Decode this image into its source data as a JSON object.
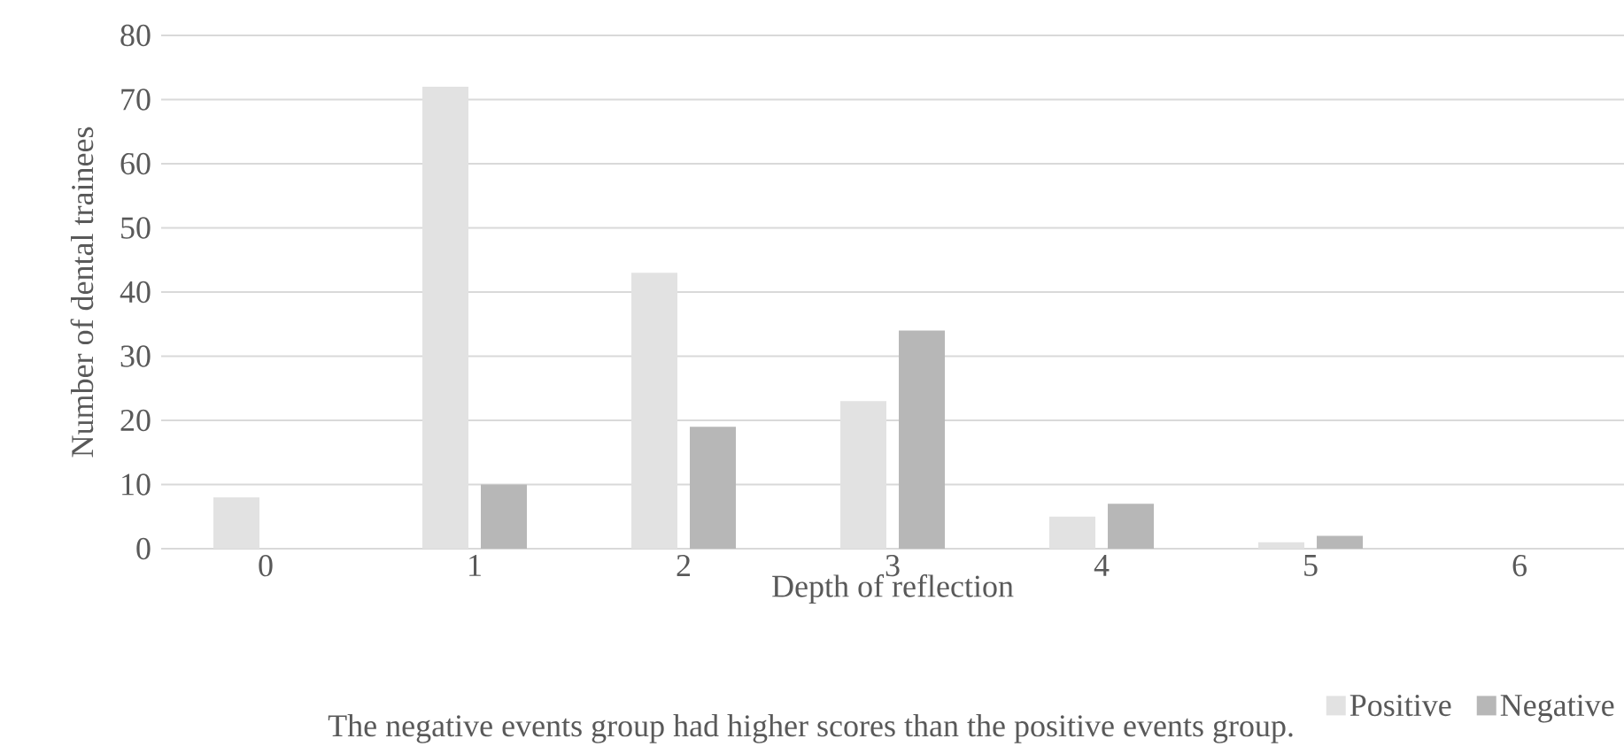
{
  "chart_data": {
    "type": "bar",
    "xlabel": "Depth of reflection",
    "ylabel": "Number of dental trainees",
    "categories": [
      "0",
      "1",
      "2",
      "3",
      "4",
      "5",
      "6"
    ],
    "series": [
      {
        "name": "Positive",
        "color": "#e2e2e2",
        "values": [
          8,
          72,
          43,
          23,
          5,
          1,
          0
        ]
      },
      {
        "name": "Negative",
        "color": "#b7b7b7",
        "values": [
          0,
          10,
          19,
          34,
          7,
          2,
          0
        ]
      }
    ],
    "ylim": [
      0,
      80
    ],
    "yticks": [
      0,
      10,
      20,
      30,
      40,
      50,
      60,
      70,
      80
    ],
    "grid": "y",
    "legend": "bottom right",
    "annotations": [
      "The negative events group had higher scores than the positive events group."
    ]
  }
}
